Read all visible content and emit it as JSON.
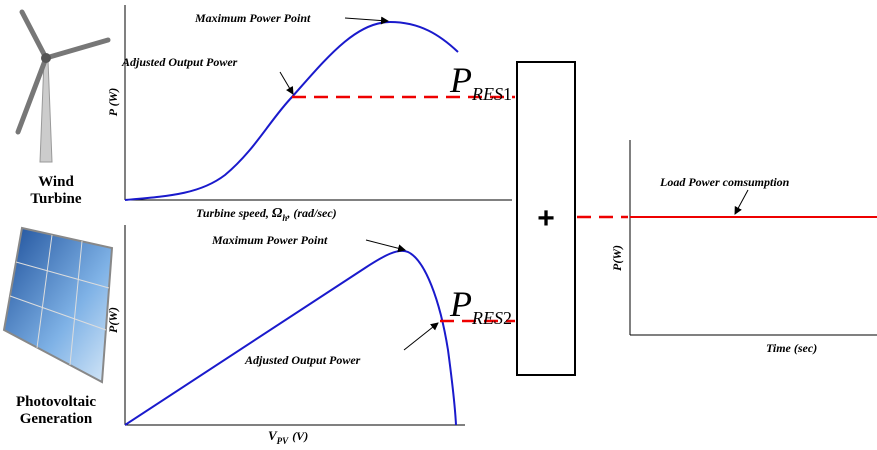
{
  "wind": {
    "label_lines": [
      "Wind",
      "Turbine"
    ],
    "plot": {
      "mpp": "Maximum Power Point",
      "adjusted": "Adjusted Output Power",
      "y_label": "P (W)",
      "x_label": {
        "text": "Turbine speed,",
        "symbol": "Ω",
        "sub": "h",
        "unit": ", (rad/sec)"
      }
    }
  },
  "pv": {
    "label_lines": [
      "Photovoltaic",
      "Generation"
    ],
    "plot": {
      "mpp": "Maximum Power Point",
      "adjusted": "Adjusted Output Power",
      "y_label": "P(W)",
      "x_label": {
        "symbol": "V",
        "sub": "PV",
        "unit": "(V)"
      }
    }
  },
  "p_res1": {
    "main": "P",
    "sub": "RES",
    "index": "1"
  },
  "p_res2": {
    "main": "P",
    "sub": "RES",
    "index": "2"
  },
  "sum_block": {
    "symbol": "+"
  },
  "load": {
    "annotation": "Load Power comsumption",
    "y_label": "P(W)",
    "x_label": "Time (sec)"
  }
}
